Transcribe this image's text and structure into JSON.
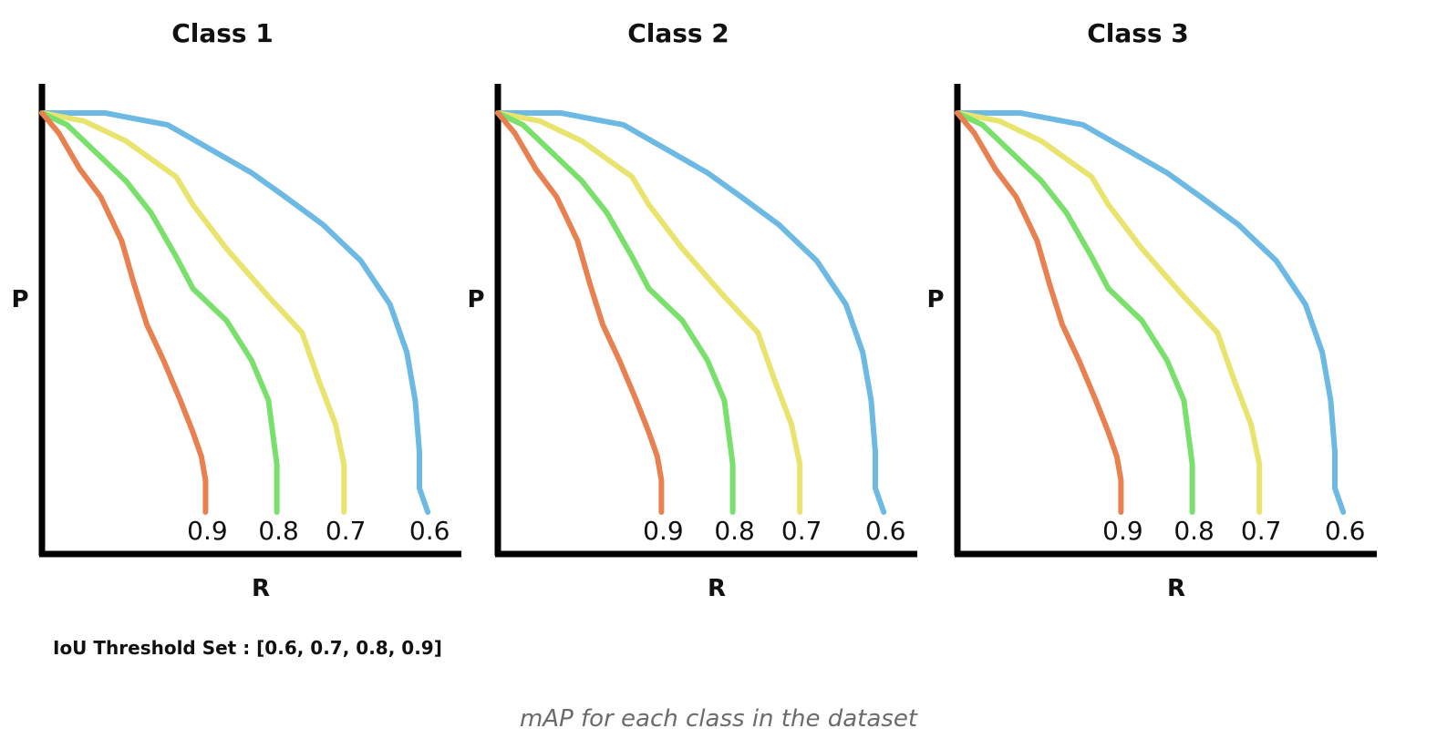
{
  "chart_data": [
    {
      "type": "line",
      "title": "Class 1",
      "xlabel": "R",
      "ylabel": "P",
      "grid": false,
      "series": [
        {
          "name": "0.6",
          "color": "#6cb9e4",
          "x": [
            0.0,
            0.15,
            0.3,
            0.4,
            0.5,
            0.58,
            0.67,
            0.76,
            0.83,
            0.87,
            0.89,
            0.9,
            0.9,
            0.92
          ],
          "y": [
            1.0,
            1.0,
            0.97,
            0.91,
            0.85,
            0.79,
            0.72,
            0.63,
            0.52,
            0.4,
            0.28,
            0.15,
            0.06,
            0.0
          ]
        },
        {
          "name": "0.7",
          "color": "#e8e46e",
          "x": [
            0.0,
            0.1,
            0.2,
            0.32,
            0.36,
            0.44,
            0.54,
            0.62,
            0.66,
            0.7,
            0.72,
            0.72
          ],
          "y": [
            1.0,
            0.98,
            0.93,
            0.84,
            0.77,
            0.66,
            0.54,
            0.45,
            0.33,
            0.22,
            0.12,
            0.0
          ]
        },
        {
          "name": "0.8",
          "color": "#79e06c",
          "x": [
            0.0,
            0.06,
            0.12,
            0.2,
            0.26,
            0.32,
            0.36,
            0.44,
            0.5,
            0.54,
            0.55,
            0.56,
            0.56
          ],
          "y": [
            1.0,
            0.97,
            0.91,
            0.83,
            0.75,
            0.64,
            0.56,
            0.48,
            0.38,
            0.28,
            0.2,
            0.12,
            0.0
          ]
        },
        {
          "name": "0.9",
          "color": "#e8804f",
          "x": [
            0.0,
            0.04,
            0.09,
            0.14,
            0.19,
            0.22,
            0.25,
            0.29,
            0.33,
            0.36,
            0.38,
            0.39,
            0.39
          ],
          "y": [
            1.0,
            0.95,
            0.86,
            0.79,
            0.68,
            0.57,
            0.47,
            0.38,
            0.28,
            0.2,
            0.14,
            0.08,
            0.0
          ]
        }
      ]
    },
    {
      "type": "line",
      "title": "Class 2",
      "xlabel": "R",
      "ylabel": "P",
      "grid": false,
      "series": [
        {
          "name": "0.6",
          "color": "#6cb9e4",
          "x": [
            0.0,
            0.15,
            0.3,
            0.4,
            0.5,
            0.58,
            0.67,
            0.76,
            0.83,
            0.87,
            0.89,
            0.9,
            0.9,
            0.92
          ],
          "y": [
            1.0,
            1.0,
            0.97,
            0.91,
            0.85,
            0.79,
            0.72,
            0.63,
            0.52,
            0.4,
            0.28,
            0.15,
            0.06,
            0.0
          ]
        },
        {
          "name": "0.7",
          "color": "#e8e46e",
          "x": [
            0.0,
            0.1,
            0.2,
            0.32,
            0.36,
            0.44,
            0.54,
            0.62,
            0.66,
            0.7,
            0.72,
            0.72
          ],
          "y": [
            1.0,
            0.98,
            0.93,
            0.84,
            0.77,
            0.66,
            0.54,
            0.45,
            0.33,
            0.22,
            0.12,
            0.0
          ]
        },
        {
          "name": "0.8",
          "color": "#79e06c",
          "x": [
            0.0,
            0.06,
            0.12,
            0.2,
            0.26,
            0.32,
            0.36,
            0.44,
            0.5,
            0.54,
            0.55,
            0.56,
            0.56
          ],
          "y": [
            1.0,
            0.97,
            0.91,
            0.83,
            0.75,
            0.64,
            0.56,
            0.48,
            0.38,
            0.28,
            0.2,
            0.12,
            0.0
          ]
        },
        {
          "name": "0.9",
          "color": "#e8804f",
          "x": [
            0.0,
            0.04,
            0.09,
            0.14,
            0.19,
            0.22,
            0.25,
            0.29,
            0.33,
            0.36,
            0.38,
            0.39,
            0.39
          ],
          "y": [
            1.0,
            0.95,
            0.86,
            0.79,
            0.68,
            0.57,
            0.47,
            0.38,
            0.28,
            0.2,
            0.14,
            0.08,
            0.0
          ]
        }
      ]
    },
    {
      "type": "line",
      "title": "Class 3",
      "xlabel": "R",
      "ylabel": "P",
      "grid": false,
      "series": [
        {
          "name": "0.6",
          "color": "#6cb9e4",
          "x": [
            0.0,
            0.15,
            0.3,
            0.4,
            0.5,
            0.58,
            0.67,
            0.76,
            0.83,
            0.87,
            0.89,
            0.9,
            0.9,
            0.92
          ],
          "y": [
            1.0,
            1.0,
            0.97,
            0.91,
            0.85,
            0.79,
            0.72,
            0.63,
            0.52,
            0.4,
            0.28,
            0.15,
            0.06,
            0.0
          ]
        },
        {
          "name": "0.7",
          "color": "#e8e46e",
          "x": [
            0.0,
            0.1,
            0.2,
            0.32,
            0.36,
            0.44,
            0.54,
            0.62,
            0.66,
            0.7,
            0.72,
            0.72
          ],
          "y": [
            1.0,
            0.98,
            0.93,
            0.84,
            0.77,
            0.66,
            0.54,
            0.45,
            0.33,
            0.22,
            0.12,
            0.0
          ]
        },
        {
          "name": "0.8",
          "color": "#79e06c",
          "x": [
            0.0,
            0.06,
            0.12,
            0.2,
            0.26,
            0.32,
            0.36,
            0.44,
            0.5,
            0.54,
            0.55,
            0.56,
            0.56
          ],
          "y": [
            1.0,
            0.97,
            0.91,
            0.83,
            0.75,
            0.64,
            0.56,
            0.48,
            0.38,
            0.28,
            0.2,
            0.12,
            0.0
          ]
        },
        {
          "name": "0.9",
          "color": "#e8804f",
          "x": [
            0.0,
            0.04,
            0.09,
            0.14,
            0.19,
            0.22,
            0.25,
            0.29,
            0.33,
            0.36,
            0.38,
            0.39,
            0.39
          ],
          "y": [
            1.0,
            0.95,
            0.86,
            0.79,
            0.68,
            0.57,
            0.47,
            0.38,
            0.28,
            0.2,
            0.14,
            0.08,
            0.0
          ]
        }
      ]
    }
  ],
  "threshold_note": "IoU Threshold Set : [0.6, 0.7, 0.8, 0.9]",
  "caption": "mAP for each class in the dataset"
}
